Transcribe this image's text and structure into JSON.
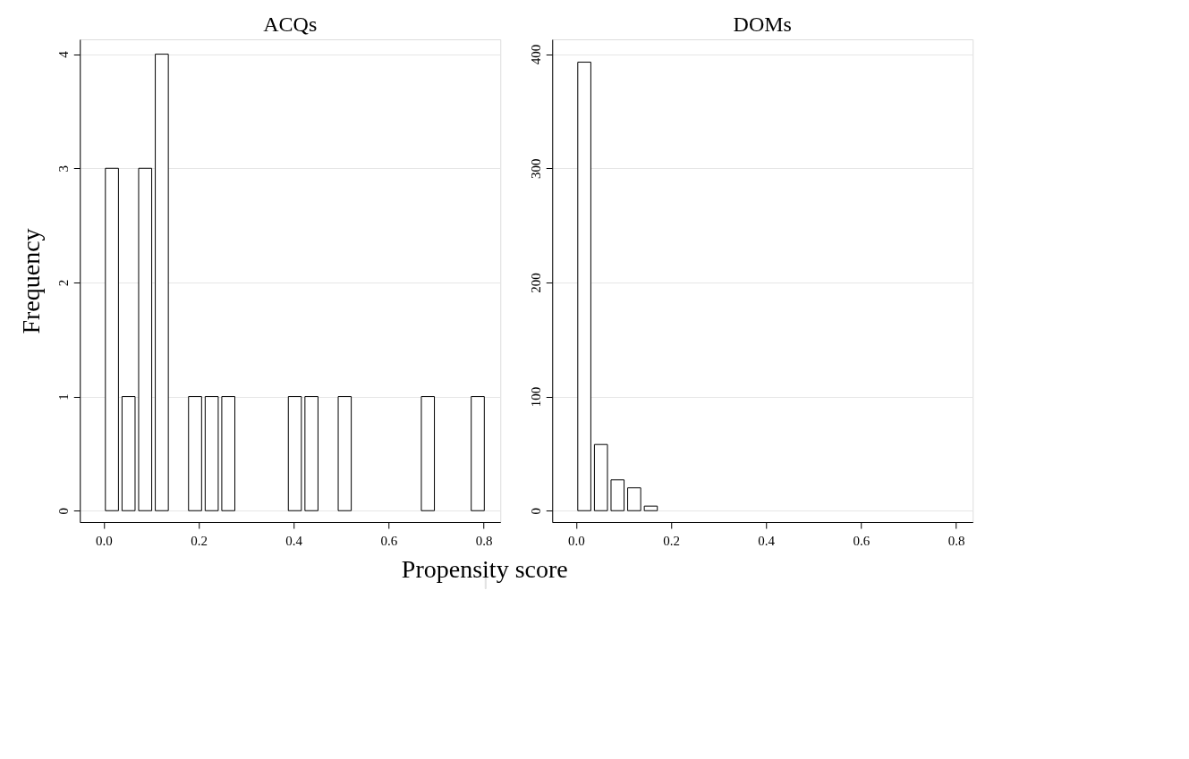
{
  "chart_data": [
    {
      "type": "histogram",
      "title": "ACQs",
      "xlabel": "Propensity score",
      "ylabel": "Frequency",
      "bins": [
        0,
        0.035,
        0.07,
        0.105,
        0.14,
        0.175,
        0.21,
        0.245,
        0.28,
        0.315,
        0.35,
        0.385,
        0.42,
        0.455,
        0.49,
        0.525,
        0.56,
        0.595,
        0.63,
        0.665,
        0.7,
        0.735,
        0.77,
        0.805
      ],
      "values": [
        3,
        1,
        3,
        4,
        0,
        1,
        1,
        1,
        0,
        0,
        0,
        1,
        1,
        0,
        1,
        0,
        0,
        0,
        0,
        1,
        0,
        0,
        1
      ],
      "color": "#ffffff",
      "xlim": [
        -0.05,
        0.835
      ],
      "xticks": [
        {
          "value": 0,
          "label": "0.0"
        },
        0.2,
        0.4,
        0.6,
        0.8
      ],
      "ylim": [
        -0.1,
        4.13
      ],
      "yticks": [
        0,
        1,
        2,
        3,
        4
      ],
      "grid": "y"
    },
    {
      "type": "histogram",
      "title": "DOMs",
      "bins": [
        0,
        0.035,
        0.07,
        0.105,
        0.14,
        0.175
      ],
      "values": [
        393,
        58,
        27,
        20,
        4
      ],
      "color": "#ffffff",
      "xlim": [
        -0.05,
        0.835
      ],
      "xticks": [
        {
          "value": 0,
          "label": "0.0"
        },
        0.2,
        0.4,
        0.6,
        0.8
      ],
      "ylim": [
        -10,
        413
      ],
      "yticks": [
        0,
        100,
        200,
        300,
        400
      ],
      "grid": "y"
    }
  ]
}
